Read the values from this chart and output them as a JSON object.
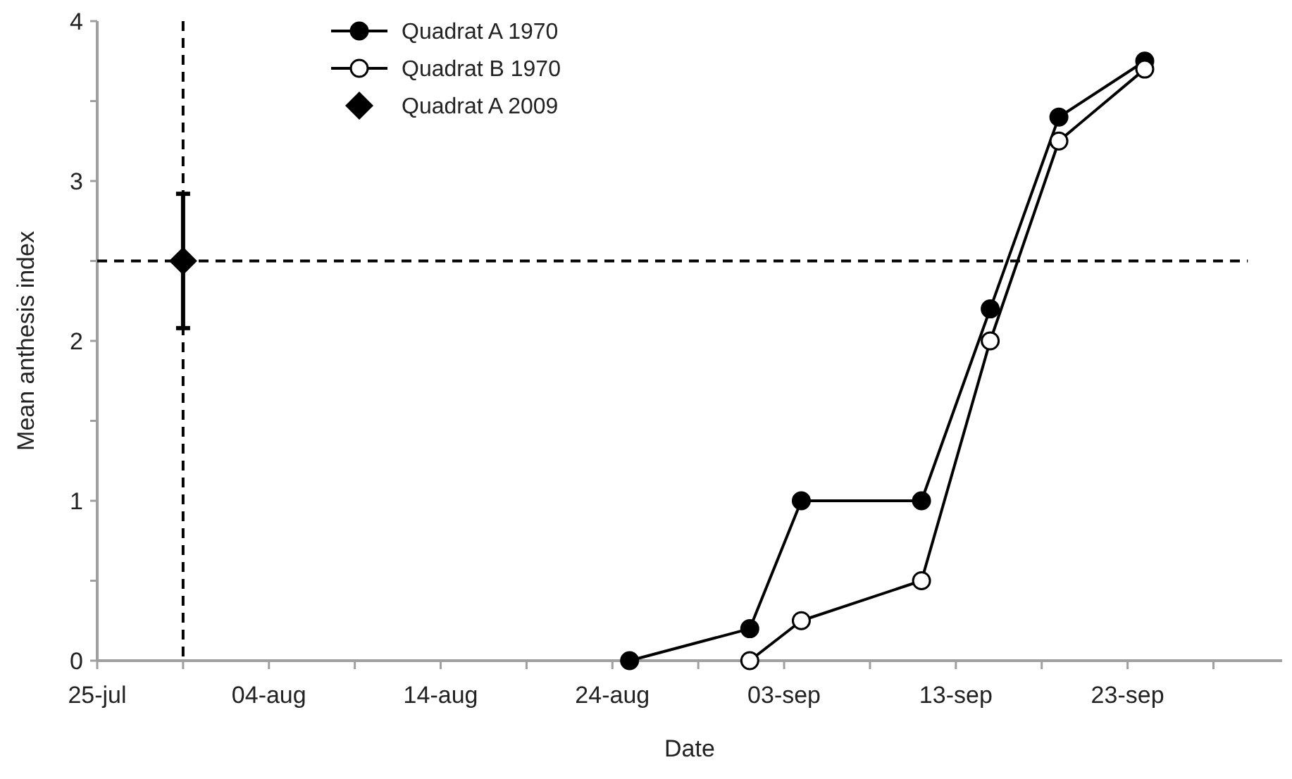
{
  "chart_data": {
    "type": "line",
    "xlabel": "Date",
    "ylabel": "Mean anthesis index",
    "xlim": [
      "--07-25",
      "--10-02"
    ],
    "xticks": [
      {
        "value": "--07-25",
        "label": "25-jul"
      },
      {
        "value": "--07-30",
        "label": null
      },
      {
        "value": "--08-04",
        "label": "04-aug"
      },
      {
        "value": "--08-09",
        "label": null
      },
      {
        "value": "--08-14",
        "label": "14-aug"
      },
      {
        "value": "--08-19",
        "label": null
      },
      {
        "value": "--08-24",
        "label": "24-aug"
      },
      {
        "value": "--08-29",
        "label": null
      },
      {
        "value": "--09-03",
        "label": "03-sep"
      },
      {
        "value": "--09-08",
        "label": null
      },
      {
        "value": "--09-13",
        "label": "13-sep"
      },
      {
        "value": "--09-18",
        "label": null
      },
      {
        "value": "--09-23",
        "label": "23-sep"
      },
      {
        "value": "--09-28",
        "label": null
      }
    ],
    "ylim": [
      0,
      4
    ],
    "yticks": [
      0,
      {
        "value": 0.5,
        "label": null
      },
      1,
      {
        "value": 1.5,
        "label": null
      },
      2,
      {
        "value": 2.5,
        "label": null
      },
      3,
      {
        "value": 3.5,
        "label": null
      },
      4
    ],
    "series": [
      {
        "name": "Quadrat A 1970",
        "marker": "circle",
        "color": "#000000",
        "x": [
          "--08-25",
          "--09-01",
          "--09-04",
          "--09-11",
          "--09-15",
          "--09-19",
          "--09-24"
        ],
        "values": [
          0,
          0.2,
          1,
          1,
          2.2,
          3.4,
          3.75
        ]
      },
      {
        "name": "Quadrat B 1970",
        "marker": "open-circle",
        "color": "#000000",
        "x": [
          "--09-01",
          "--09-04",
          "--09-11",
          "--09-15",
          "--09-19",
          "--09-24"
        ],
        "values": [
          0,
          0.25,
          0.5,
          2,
          3.25,
          3.7
        ]
      },
      {
        "name": "Quadrat A 2009",
        "type": "scatter",
        "marker": "diamond",
        "color": "#000000",
        "x": [
          "--07-30"
        ],
        "values": [
          2.5
        ],
        "errors": [
          0.42
        ]
      }
    ],
    "ref_lines": [
      {
        "axis": "x",
        "value": "--07-30",
        "color": "#000000",
        "line_style": "dashed"
      },
      {
        "axis": "y",
        "value": 2.5,
        "color": "#000000",
        "line_style": "dashed"
      }
    ],
    "legend": "top",
    "grid": false
  }
}
